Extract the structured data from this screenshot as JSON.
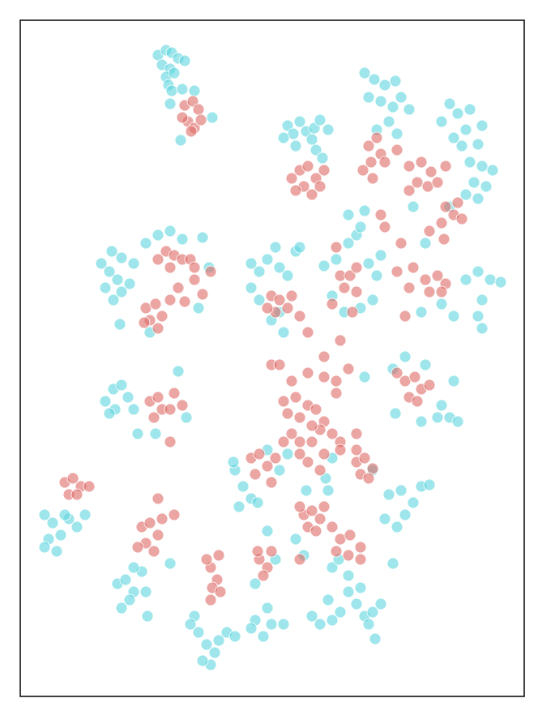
{
  "chart_data": {
    "type": "scatter",
    "xlim": [
      25,
      647
    ],
    "ylim": [
      859,
      25
    ],
    "series": [
      {
        "color": "#5dd6dd",
        "x": [
          195,
          205,
          212,
          220,
          228,
          200,
          210,
          205,
          215,
          208,
          212,
          210,
          225,
          240,
          262,
          223,
          355,
          362,
          370,
          378,
          388,
          395,
          405,
          385,
          365,
          350,
          390,
          398,
          450,
          462,
          475,
          488,
          455,
          470,
          485,
          495,
          505,
          480,
          465,
          490,
          555,
          565,
          580,
          595,
          575,
          560,
          545,
          590,
          570,
          580,
          595,
          608,
          585,
          600,
          575,
          590,
          125,
          135,
          145,
          130,
          150,
          140,
          160,
          165,
          150,
          138,
          148,
          180,
          195,
          210,
          225,
          250,
          258,
          245,
          185,
          310,
          320,
          330,
          345,
          355,
          340,
          365,
          310,
          320,
          345,
          350,
          335,
          415,
          430,
          440,
          455,
          465,
          460,
          445,
          425,
          410,
          450,
          470,
          575,
          590,
          605,
          618,
          595,
          590,
          595,
          560,
          545,
          520,
          130,
          140,
          150,
          158,
          142,
          135,
          165,
          220,
          230,
          170,
          192,
          545,
          555,
          565,
          540,
          520,
          560,
          525,
          485,
          500,
          488,
          55,
          65,
          60,
          75,
          70,
          55,
          85,
          95,
          105,
          80,
          145,
          155,
          165,
          160,
          150,
          175,
          180,
          182,
          165,
          210,
          290,
          300,
          310,
          295,
          288,
          318,
          330,
          345,
          355,
          480,
          495,
          510,
          500,
          490,
          520,
          530,
          475,
          240,
          245,
          255,
          265,
          260,
          270,
          280,
          290,
          250,
          235,
          315,
          325,
          335,
          350,
          330,
          310,
          385,
          395,
          410,
          405,
          420,
          440,
          450,
          460,
          470,
          455,
          463,
          445,
          430,
          430,
          365,
          375,
          340,
          330,
          410,
          418,
          315,
          378,
          405,
          410,
          402,
          485,
          460,
          450,
          430,
          445,
          555,
          510,
          525,
          400,
          370
        ],
        "values": [
          68,
          62,
          65,
          72,
          75,
          80,
          85,
          95,
          90,
          105,
          112,
          128,
          110,
          112,
          145,
          173,
          155,
          165,
          150,
          162,
          158,
          148,
          160,
          172,
          180,
          170,
          185,
          195,
          90,
          98,
          105,
          100,
          120,
          125,
          132,
          120,
          135,
          150,
          160,
          165,
          128,
          140,
          135,
          155,
          160,
          170,
          150,
          178,
          180,
          200,
          205,
          210,
          225,
          230,
          240,
          245,
          325,
          335,
          345,
          355,
          360,
          370,
          350,
          325,
          318,
          310,
          400,
          300,
          290,
          285,
          295,
          293,
          330,
          380,
          410,
          325,
          335,
          320,
          330,
          340,
          305,
          310,
          355,
          370,
          385,
          410,
          395,
          320,
          300,
          290,
          325,
          340,
          370,
          380,
          385,
          365,
          260,
          315,
          345,
          335,
          345,
          348,
          370,
          390,
          405,
          390,
          375,
          385,
          495,
          480,
          475,
          490,
          505,
          510,
          505,
          458,
          515,
          535,
          535,
          500,
          515,
          520,
          515,
          520,
          470,
          450,
          455,
          440,
          510,
          635,
          645,
          665,
          660,
          680,
          675,
          640,
          650,
          635,
          635,
          720,
          715,
          730,
          740,
          750,
          705,
          730,
          760,
          700,
          695,
          580,
          600,
          615,
          625,
          570,
          620,
          555,
          580,
          560,
          610,
          605,
          620,
          635,
          650,
          600,
          598,
          640,
          760,
          780,
          795,
          805,
          820,
          790,
          780,
          785,
          815,
          770,
          765,
          785,
          770,
          770,
          750,
          775,
          760,
          770,
          765,
          740,
          755,
          745,
          760,
          755,
          745,
          770,
          788,
          725,
          730,
          710,
          665,
          685,
          690,
          655,
          700,
          690,
          720,
          605,
          605,
          565,
          590,
          695,
          580,
          465,
          265,
          280,
          255,
          255,
          300,
          328,
          305
        ]
      },
      {
        "color": "#de6b66",
        "x": [
          228,
          238,
          245,
          232,
          240,
          225,
          248,
          236,
          370,
          380,
          390,
          375,
          385,
          365,
          395,
          400,
          360,
          455,
          465,
          470,
          458,
          448,
          475,
          490,
          460,
          505,
          520,
          532,
          515,
          528,
          505,
          540,
          550,
          550,
          560,
          570,
          545,
          548,
          530,
          565,
          205,
          215,
          225,
          235,
          210,
          240,
          260,
          195,
          180,
          192,
          200,
          185,
          210,
          220,
          178,
          195,
          228,
          240,
          250,
          335,
          345,
          355,
          340,
          360,
          370,
          330,
          420,
          432,
          440,
          425,
          415,
          410,
          440,
          435,
          525,
          540,
          550,
          545,
          530,
          510,
          505,
          495,
          490,
          500,
          380,
          400,
          420,
          335,
          345,
          360,
          380,
          400,
          415,
          430,
          350,
          365,
          380,
          370,
          390,
          400,
          395,
          385,
          370,
          360,
          355,
          410,
          420,
          400,
          380,
          370,
          420,
          440,
          395,
          385,
          415,
          475,
          470,
          185,
          195,
          200,
          190,
          210,
          225,
          210,
          215,
          500,
          512,
          520,
          505,
          490,
          530,
          515,
          310,
          320,
          330,
          315,
          340,
          335,
          350,
          440,
          450,
          460,
          445,
          455,
          440,
          80,
          90,
          100,
          85,
          95,
          110,
          175,
          185,
          195,
          180,
          190,
          170,
          200,
          195,
          215,
          375,
          385,
          395,
          380,
          390,
          370,
          400,
          370,
          420,
          432,
          445,
          430,
          445,
          415,
          410,
          320,
          330,
          325,
          318,
          335,
          260,
          268,
          262,
          272,
          255,
          270,
          260
        ],
        "values": [
          130,
          125,
          135,
          150,
          158,
          145,
          148,
          162,
          210,
          205,
          220,
          230,
          240,
          235,
          230,
          210,
          220,
          180,
          170,
          190,
          200,
          210,
          200,
          185,
          220,
          205,
          200,
          212,
          225,
          230,
          235,
          225,
          205,
          255,
          265,
          270,
          275,
          295,
          285,
          250,
          310,
          315,
          320,
          320,
          330,
          330,
          335,
          320,
          380,
          375,
          390,
          395,
          370,
          355,
          398,
          405,
          372,
          345,
          363,
          365,
          370,
          380,
          385,
          365,
          390,
          380,
          340,
          340,
          330,
          355,
          305,
          375,
          360,
          385,
          345,
          340,
          350,
          360,
          360,
          330,
          355,
          300,
          335,
          390,
          410,
          440,
          420,
          450,
          450,
          470,
          460,
          465,
          470,
          455,
          495,
          490,
          500,
          515,
          505,
          520,
          530,
          545,
          545,
          535,
          510,
          535,
          545,
          560,
          570,
          560,
          555,
          535,
          580,
          525,
          485,
          280,
          265,
          495,
          490,
          505,
          515,
          505,
          500,
          545,
          485,
          470,
          465,
          480,
          490,
          460,
          475,
          495,
          565,
          560,
          575,
          585,
          565,
          595,
          545,
          570,
          565,
          578,
          585,
          590,
          555,
          595,
          590,
          600,
          610,
          610,
          600,
          650,
          645,
          660,
          670,
          680,
          675,
          640,
          615,
          635,
          635,
          630,
          640,
          650,
          655,
          625,
          625,
          690,
          665,
          660,
          675,
          685,
          690,
          680,
          650,
          690,
          700,
          710,
          680,
          680,
          700,
          715,
          725,
          730,
          690,
          685,
          740
        ]
      }
    ]
  }
}
